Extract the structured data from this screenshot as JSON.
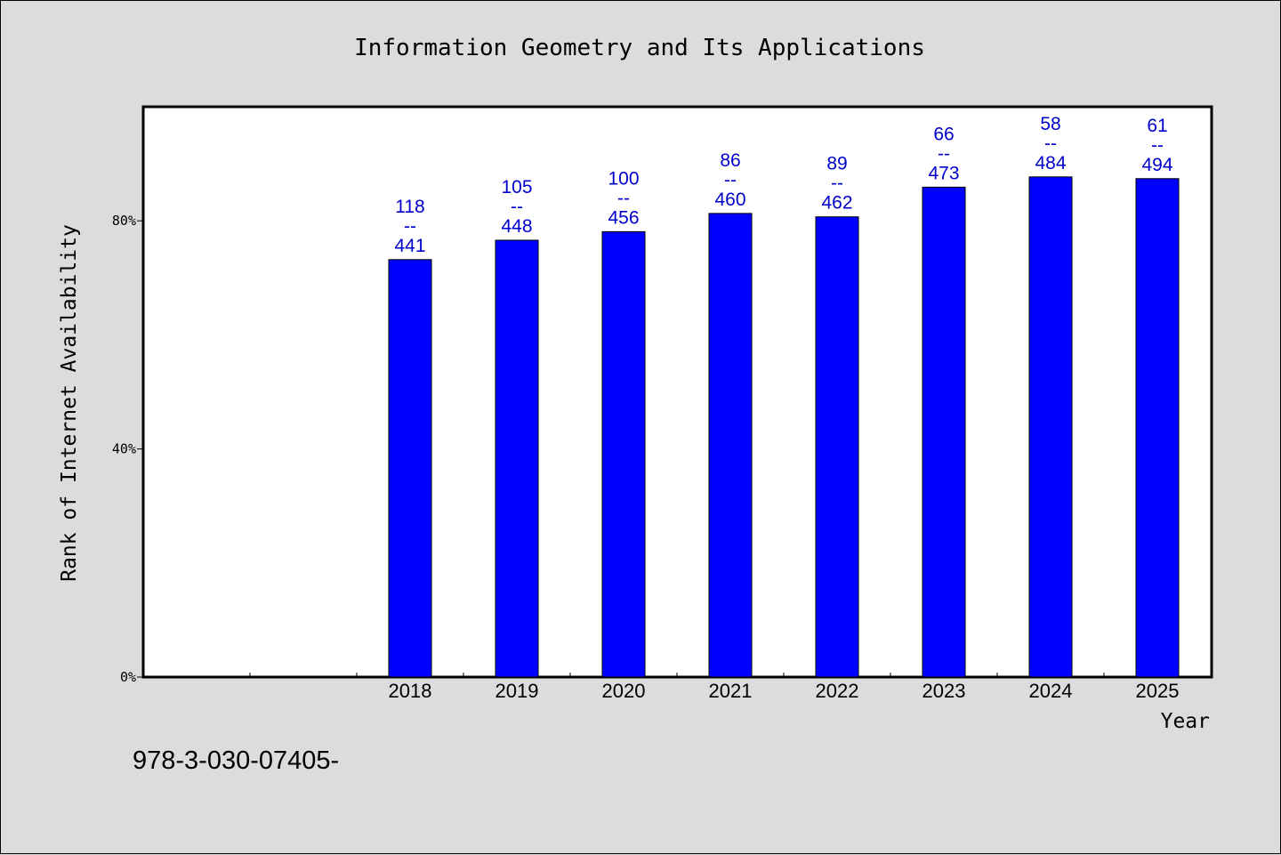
{
  "chart_data": {
    "type": "bar",
    "title": "Information Geometry and Its Applications",
    "xlabel": "Year",
    "ylabel": "Rank of Internet Availability",
    "categories": [
      "2018",
      "2019",
      "2020",
      "2021",
      "2022",
      "2023",
      "2024",
      "2025"
    ],
    "series": [
      {
        "values": [
          73.2,
          76.6,
          78.1,
          81.3,
          80.7,
          85.9,
          87.7,
          87.4
        ],
        "labels": [
          {
            "top": "118",
            "bottom": "441"
          },
          {
            "top": "105",
            "bottom": "448"
          },
          {
            "top": "100",
            "bottom": "456"
          },
          {
            "top": "86",
            "bottom": "460"
          },
          {
            "top": "89",
            "bottom": "462"
          },
          {
            "top": "66",
            "bottom": "473"
          },
          {
            "top": "58",
            "bottom": "484"
          },
          {
            "top": "61",
            "bottom": "494"
          }
        ]
      }
    ],
    "label_separator": "--",
    "yticks": [
      0,
      40,
      80
    ],
    "ytick_labels": [
      "0%",
      "40%",
      "80%"
    ],
    "ylim": [
      0,
      100
    ],
    "empty_slots_before": 2,
    "grid": false,
    "bar_color": "#0000ff",
    "label_color": "#0000cc"
  },
  "footer_text": "978-3-030-07405-"
}
